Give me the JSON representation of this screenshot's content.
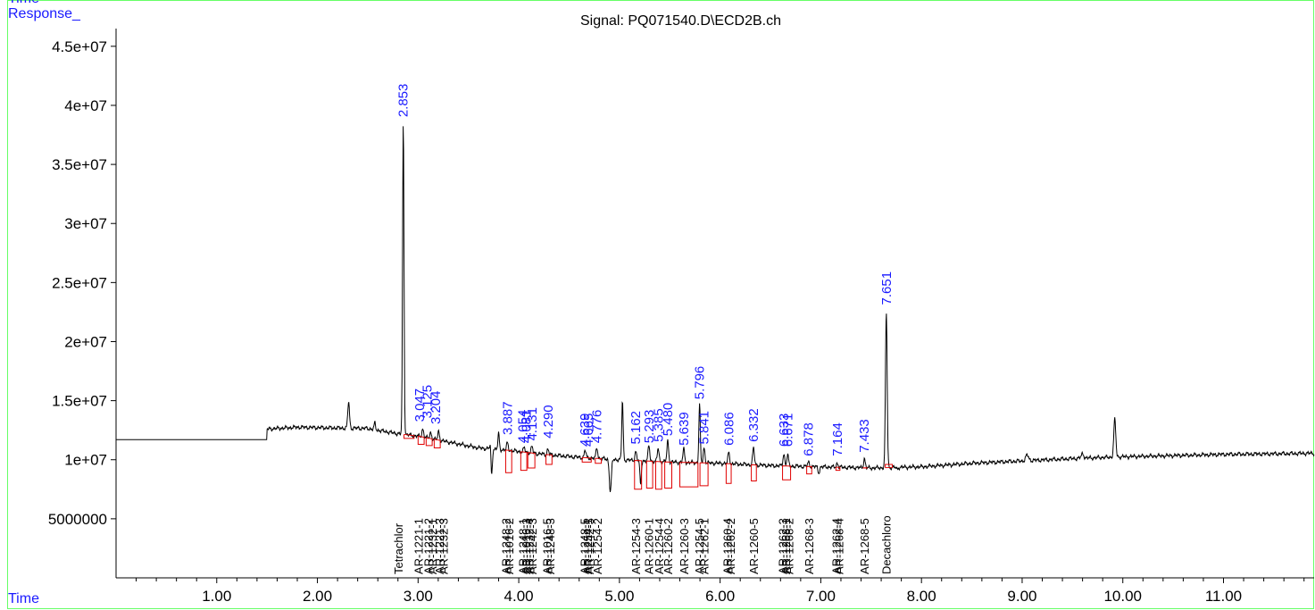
{
  "chart_data": {
    "type": "line",
    "title": "Signal: PQ071540.D\\ECD2B.ch",
    "top_corner_label": "Time",
    "ylabel": "Response_",
    "xlabel": "Time",
    "xlim": [
      0.0,
      11.9
    ],
    "ylim": [
      0,
      46500000
    ],
    "x_ticks": [
      1.0,
      2.0,
      3.0,
      4.0,
      5.0,
      6.0,
      7.0,
      8.0,
      9.0,
      10.0,
      11.0
    ],
    "x_tick_labels": [
      "1.00",
      "2.00",
      "3.00",
      "4.00",
      "5.00",
      "6.00",
      "7.00",
      "8.00",
      "9.00",
      "10.00",
      "11.00"
    ],
    "y_ticks": [
      5000000,
      10000000,
      15000000,
      20000000,
      25000000,
      30000000,
      35000000,
      40000000,
      45000000
    ],
    "y_tick_labels": [
      "5000000",
      "1e+07",
      "1.5e+07",
      "2e+07",
      "2.5e+07",
      "3e+07",
      "3.5e+07",
      "4e+07",
      "4.5e+07"
    ],
    "colors": {
      "trace": "#000000",
      "baseline": "#e00000",
      "peak_label": "#1a1aff",
      "axis_text": "#000000",
      "frame": "#66ff66"
    },
    "trace": {
      "baseline_points": [
        [
          0.0,
          11700000
        ],
        [
          1.5,
          11700000
        ],
        [
          1.5,
          12600000
        ],
        [
          1.8,
          12750000
        ],
        [
          2.1,
          12700000
        ],
        [
          2.5,
          12650000
        ],
        [
          2.8,
          12200000
        ],
        [
          3.0,
          12000000
        ],
        [
          3.3,
          11500000
        ],
        [
          3.6,
          11000000
        ],
        [
          3.9,
          10800000
        ],
        [
          4.2,
          10500000
        ],
        [
          4.6,
          10200000
        ],
        [
          5.0,
          10000000
        ],
        [
          5.5,
          9800000
        ],
        [
          6.0,
          9700000
        ],
        [
          6.5,
          9500000
        ],
        [
          7.0,
          9400000
        ],
        [
          7.5,
          9300000
        ],
        [
          8.0,
          9400000
        ],
        [
          8.5,
          9700000
        ],
        [
          9.0,
          9900000
        ],
        [
          9.5,
          10100000
        ],
        [
          10.0,
          10250000
        ],
        [
          10.5,
          10350000
        ],
        [
          11.0,
          10450000
        ],
        [
          11.5,
          10500000
        ],
        [
          11.9,
          10550000
        ]
      ],
      "peaks": [
        {
          "x": 2.31,
          "y": 14900000,
          "w": 0.012
        },
        {
          "x": 2.57,
          "y": 13100000,
          "w": 0.01
        },
        {
          "x": 2.853,
          "y": 38500000,
          "w": 0.01
        },
        {
          "x": 3.047,
          "y": 12600000,
          "w": 0.012
        },
        {
          "x": 3.125,
          "y": 12300000,
          "w": 0.012
        },
        {
          "x": 3.204,
          "y": 12400000,
          "w": 0.012
        },
        {
          "x": 3.72,
          "y": 11600000,
          "w": 0.01
        },
        {
          "x": 3.8,
          "y": 12200000,
          "w": 0.01
        },
        {
          "x": 3.887,
          "y": 11400000,
          "w": 0.012
        },
        {
          "x": 4.054,
          "y": 11000000,
          "w": 0.012
        },
        {
          "x": 4.131,
          "y": 11100000,
          "w": 0.012
        },
        {
          "x": 4.29,
          "y": 10900000,
          "w": 0.012
        },
        {
          "x": 4.66,
          "y": 10800000,
          "w": 0.012
        },
        {
          "x": 4.776,
          "y": 11000000,
          "w": 0.012
        },
        {
          "x": 5.03,
          "y": 15000000,
          "w": 0.01
        },
        {
          "x": 5.162,
          "y": 10700000,
          "w": 0.012
        },
        {
          "x": 5.293,
          "y": 11200000,
          "w": 0.012
        },
        {
          "x": 5.385,
          "y": 11000000,
          "w": 0.012
        },
        {
          "x": 5.48,
          "y": 11600000,
          "w": 0.012
        },
        {
          "x": 5.639,
          "y": 10900000,
          "w": 0.012
        },
        {
          "x": 5.796,
          "y": 14700000,
          "w": 0.01
        },
        {
          "x": 5.841,
          "y": 11000000,
          "w": 0.012
        },
        {
          "x": 6.086,
          "y": 10600000,
          "w": 0.012
        },
        {
          "x": 6.332,
          "y": 11000000,
          "w": 0.012
        },
        {
          "x": 6.633,
          "y": 10500000,
          "w": 0.012
        },
        {
          "x": 6.671,
          "y": 10400000,
          "w": 0.012
        },
        {
          "x": 6.878,
          "y": 9800000,
          "w": 0.012
        },
        {
          "x": 7.164,
          "y": 9700000,
          "w": 0.012
        },
        {
          "x": 7.433,
          "y": 10100000,
          "w": 0.012
        },
        {
          "x": 7.651,
          "y": 22500000,
          "w": 0.012
        },
        {
          "x": 9.05,
          "y": 10400000,
          "w": 0.02
        },
        {
          "x": 9.6,
          "y": 10500000,
          "w": 0.018
        },
        {
          "x": 9.92,
          "y": 13400000,
          "w": 0.014
        }
      ],
      "dips": [
        {
          "x": 3.73,
          "y": 8500000,
          "w": 0.01
        },
        {
          "x": 4.91,
          "y": 7300000,
          "w": 0.014
        },
        {
          "x": 5.21,
          "y": 7900000,
          "w": 0.01
        },
        {
          "x": 6.98,
          "y": 8900000,
          "w": 0.012
        },
        {
          "x": 7.76,
          "y": 9200000,
          "w": 0.01
        }
      ]
    },
    "integration_marks": [
      {
        "x1": 2.86,
        "x2": 2.96,
        "drop": 11800000
      },
      {
        "x1": 3.0,
        "x2": 3.06,
        "drop": 11300000
      },
      {
        "x1": 3.08,
        "x2": 3.14,
        "drop": 11200000
      },
      {
        "x1": 3.16,
        "x2": 3.22,
        "drop": 11000000
      },
      {
        "x1": 3.87,
        "x2": 3.93,
        "drop": 8900000
      },
      {
        "x1": 4.02,
        "x2": 4.08,
        "drop": 9100000
      },
      {
        "x1": 4.09,
        "x2": 4.16,
        "drop": 9300000
      },
      {
        "x1": 4.27,
        "x2": 4.33,
        "drop": 9600000
      },
      {
        "x1": 4.63,
        "x2": 4.72,
        "drop": 9800000
      },
      {
        "x1": 4.76,
        "x2": 4.82,
        "drop": 9700000
      },
      {
        "x1": 5.15,
        "x2": 5.22,
        "drop": 7500000
      },
      {
        "x1": 5.27,
        "x2": 5.33,
        "drop": 7600000
      },
      {
        "x1": 5.36,
        "x2": 5.42,
        "drop": 7500000
      },
      {
        "x1": 5.45,
        "x2": 5.52,
        "drop": 7600000
      },
      {
        "x1": 5.6,
        "x2": 5.78,
        "drop": 7700000
      },
      {
        "x1": 5.8,
        "x2": 5.88,
        "drop": 7800000
      },
      {
        "x1": 6.06,
        "x2": 6.11,
        "drop": 8000000
      },
      {
        "x1": 6.31,
        "x2": 6.36,
        "drop": 8200000
      },
      {
        "x1": 6.62,
        "x2": 6.7,
        "drop": 8300000
      },
      {
        "x1": 6.86,
        "x2": 6.91,
        "drop": 8800000
      },
      {
        "x1": 7.15,
        "x2": 7.19,
        "drop": 9100000
      },
      {
        "x1": 7.42,
        "x2": 7.46,
        "drop": 9300000
      },
      {
        "x1": 7.64,
        "x2": 7.71,
        "drop": 9600000
      }
    ],
    "peak_labels": [
      {
        "x": 2.853,
        "y": 38700000,
        "text": "2.853"
      },
      {
        "x": 3.015,
        "y": 12900000,
        "text": "3.047"
      },
      {
        "x": 3.09,
        "y": 13200000,
        "text": "3.125"
      },
      {
        "x": 3.175,
        "y": 12700000,
        "text": "3.204"
      },
      {
        "x": 3.887,
        "y": 11800000,
        "text": "3.887"
      },
      {
        "x": 4.04,
        "y": 11100000,
        "text": "4.054"
      },
      {
        "x": 4.075,
        "y": 11100000,
        "text": "4.081"
      },
      {
        "x": 4.13,
        "y": 11300000,
        "text": "4.131"
      },
      {
        "x": 4.29,
        "y": 11500000,
        "text": "4.290"
      },
      {
        "x": 4.655,
        "y": 10800000,
        "text": "4.639"
      },
      {
        "x": 4.69,
        "y": 10800000,
        "text": "4.665"
      },
      {
        "x": 4.776,
        "y": 11100000,
        "text": "4.776"
      },
      {
        "x": 5.162,
        "y": 11000000,
        "text": "5.162"
      },
      {
        "x": 5.293,
        "y": 11100000,
        "text": "5.293"
      },
      {
        "x": 5.385,
        "y": 11200000,
        "text": "5.385"
      },
      {
        "x": 5.48,
        "y": 11700000,
        "text": "5.480"
      },
      {
        "x": 5.639,
        "y": 10900000,
        "text": "5.639"
      },
      {
        "x": 5.796,
        "y": 14800000,
        "text": "5.796"
      },
      {
        "x": 5.841,
        "y": 11000000,
        "text": "5.841"
      },
      {
        "x": 6.086,
        "y": 10900000,
        "text": "6.086"
      },
      {
        "x": 6.332,
        "y": 11200000,
        "text": "6.332"
      },
      {
        "x": 6.633,
        "y": 10800000,
        "text": "6.633"
      },
      {
        "x": 6.671,
        "y": 10800000,
        "text": "6.671"
      },
      {
        "x": 6.878,
        "y": 10000000,
        "text": "6.878"
      },
      {
        "x": 7.164,
        "y": 10000000,
        "text": "7.164"
      },
      {
        "x": 7.433,
        "y": 10300000,
        "text": "7.433"
      },
      {
        "x": 7.651,
        "y": 22800000,
        "text": "7.651"
      }
    ],
    "compound_labels": [
      {
        "x": 2.8,
        "text": "Tetrachlor"
      },
      {
        "x": 3.0,
        "text": "AR-1221-1"
      },
      {
        "x": 3.1,
        "text": "AR-1221-2"
      },
      {
        "x": 3.14,
        "text": "AR-1232-1"
      },
      {
        "x": 3.21,
        "text": "AR-1221-3"
      },
      {
        "x": 3.25,
        "text": "AR-1232-3"
      },
      {
        "x": 3.87,
        "text": "AR-1248-2"
      },
      {
        "x": 3.9,
        "text": "AR-1016-2"
      },
      {
        "x": 4.04,
        "text": "AR-1248-1"
      },
      {
        "x": 4.07,
        "text": "AR-1016-3"
      },
      {
        "x": 4.1,
        "text": "AR-1232-4"
      },
      {
        "x": 4.13,
        "text": "AR-1242-3"
      },
      {
        "x": 4.28,
        "text": "AR-1016-5"
      },
      {
        "x": 4.31,
        "text": "AR-1248-3"
      },
      {
        "x": 4.65,
        "text": "AR-1248-5"
      },
      {
        "x": 4.68,
        "text": "AR-1254-1"
      },
      {
        "x": 4.7,
        "text": "AR-1242-5"
      },
      {
        "x": 4.78,
        "text": "AR-1254-2"
      },
      {
        "x": 5.16,
        "text": "AR-1254-3"
      },
      {
        "x": 5.29,
        "text": "AR-1260-1"
      },
      {
        "x": 5.39,
        "text": "AR-1254-4"
      },
      {
        "x": 5.48,
        "text": "AR-1260-2"
      },
      {
        "x": 5.64,
        "text": "AR-1260-3"
      },
      {
        "x": 5.79,
        "text": "AR-1254-5"
      },
      {
        "x": 5.84,
        "text": "AR-1262-1"
      },
      {
        "x": 6.07,
        "text": "AR-1260-4"
      },
      {
        "x": 6.1,
        "text": "AR-1262-2"
      },
      {
        "x": 6.33,
        "text": "AR-1260-5"
      },
      {
        "x": 6.62,
        "text": "AR-1262-3"
      },
      {
        "x": 6.65,
        "text": "AR-1268-1"
      },
      {
        "x": 6.68,
        "text": "AR-1268-2"
      },
      {
        "x": 6.88,
        "text": "AR-1268-3"
      },
      {
        "x": 7.15,
        "text": "AR-1262-4"
      },
      {
        "x": 7.18,
        "text": "AR-1268-4"
      },
      {
        "x": 7.43,
        "text": "AR-1268-5"
      },
      {
        "x": 7.65,
        "text": "Decachloro"
      }
    ]
  }
}
